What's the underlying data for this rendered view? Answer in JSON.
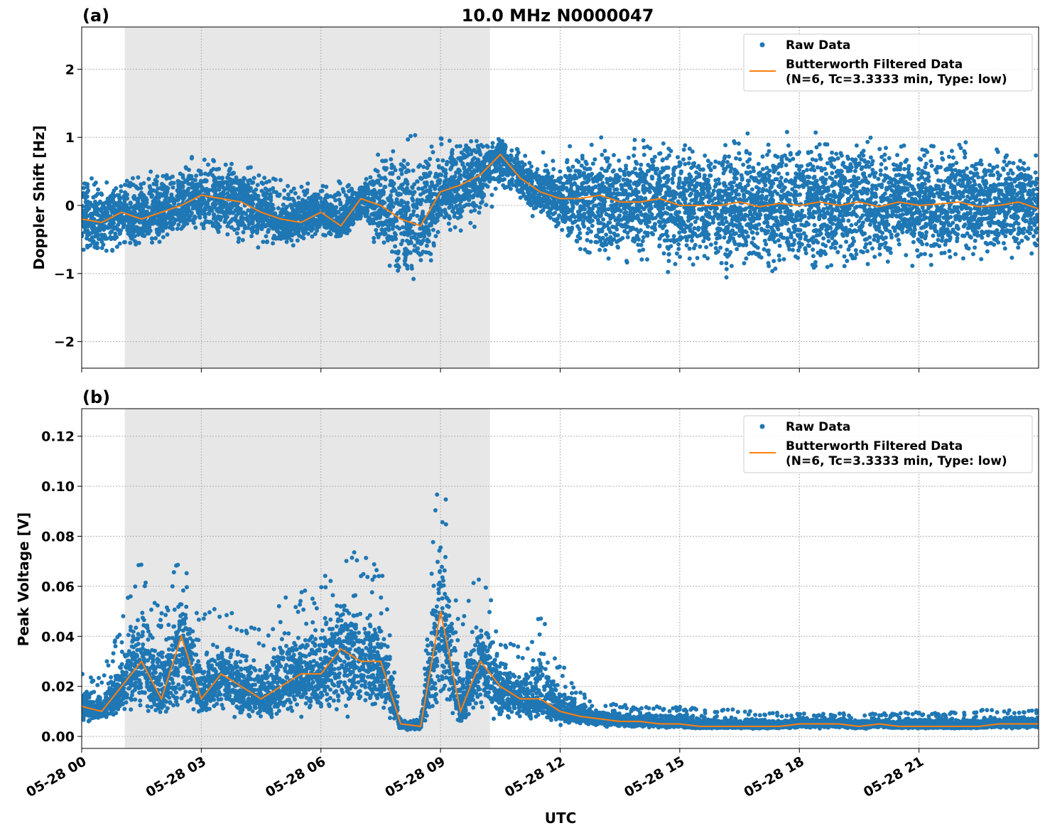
{
  "chart_data": [
    {
      "type": "scatter",
      "panel_label": "(a)",
      "title": "10.0 MHz N0000047",
      "xlabel": "",
      "ylabel": "Doppler Shift [Hz]",
      "xlim_hours": [
        0,
        24
      ],
      "ylim": [
        -2.39,
        2.62
      ],
      "yticks": [
        -2,
        -1,
        0,
        1,
        2
      ],
      "ytick_labels": [
        "−2",
        "−1",
        "0",
        "1",
        "2"
      ],
      "grid": true,
      "legend_position": "top-right",
      "shaded_interval_hours": [
        1.08,
        10.24
      ],
      "legend": [
        "Raw Data",
        "Butterworth Filtered Data",
        "(N=6, Tc=3.3333 min, Type: low)"
      ],
      "x_hours_step": 0.5,
      "filtered": [
        -0.2,
        -0.25,
        -0.1,
        -0.2,
        -0.1,
        0,
        0.15,
        0.1,
        0.05,
        -0.1,
        -0.2,
        -0.25,
        -0.1,
        -0.3,
        0.1,
        0,
        -0.2,
        -0.3,
        0.2,
        0.3,
        0.45,
        0.75,
        0.4,
        0.2,
        0.1,
        0.1,
        0.15,
        0.05,
        0.05,
        0.1,
        0,
        0,
        0,
        0.05,
        -0.02,
        0.03,
        0,
        0.05,
        0,
        0.05,
        -0.02,
        0.05,
        0,
        0.02,
        0.05,
        -0.02,
        0,
        0.05,
        -0.05
      ],
      "raw_low": [
        -0.8,
        -0.8,
        -0.7,
        -0.7,
        -0.7,
        -0.6,
        -0.5,
        -0.7,
        -0.7,
        -0.7,
        -0.7,
        -0.6,
        -0.5,
        -0.6,
        -0.3,
        -0.8,
        -1.4,
        -1.4,
        -0.5,
        -0.5,
        -0.3,
        0.1,
        0.0,
        -0.4,
        -0.5,
        -0.9,
        -1.0,
        -1.0,
        -1.1,
        -1.1,
        -1.1,
        -1.1,
        -1.1,
        -1.2,
        -1.2,
        -1.2,
        -1.2,
        -1.2,
        -1.1,
        -1.1,
        -1.1,
        -1.0,
        -1.0,
        -1.0,
        -1.0,
        -1.0,
        -0.9,
        -0.9,
        -0.9
      ],
      "raw_high": [
        0.6,
        0.5,
        0.5,
        0.6,
        0.6,
        0.7,
        0.9,
        0.8,
        0.8,
        0.6,
        0.5,
        0.4,
        0.4,
        0.5,
        0.4,
        1.0,
        1.3,
        1.2,
        1.1,
        1.2,
        1.1,
        1.0,
        0.9,
        0.8,
        0.8,
        1.0,
        1.1,
        1.0,
        1.1,
        1.1,
        1.1,
        1.1,
        1.1,
        1.2,
        1.2,
        1.2,
        1.2,
        1.3,
        1.2,
        1.2,
        1.2,
        1.1,
        1.1,
        1.1,
        1.1,
        1.0,
        1.0,
        1.0,
        0.9
      ]
    },
    {
      "type": "scatter",
      "panel_label": "(b)",
      "xlabel": "UTC",
      "ylabel": "Peak Voltage [V]",
      "xlim_hours": [
        0,
        24
      ],
      "ylim": [
        -0.0048,
        0.131
      ],
      "yticks": [
        0,
        0.02,
        0.04,
        0.06,
        0.08,
        0.1,
        0.12
      ],
      "ytick_labels": [
        "0.00",
        "0.02",
        "0.04",
        "0.06",
        "0.08",
        "0.10",
        "0.12"
      ],
      "xtick_labels": [
        "05-28 00",
        "05-28 03",
        "05-28 06",
        "05-28 09",
        "05-28 12",
        "05-28 15",
        "05-28 18",
        "05-28 21"
      ],
      "xtick_hours": [
        0,
        3,
        6,
        9,
        12,
        15,
        18,
        21
      ],
      "grid": true,
      "legend_position": "top-right",
      "shaded_interval_hours": [
        1.08,
        10.24
      ],
      "legend": [
        "Raw Data",
        "Butterworth Filtered Data",
        "(N=6, Tc=3.3333 min, Type: low)"
      ],
      "x_hours_step": 0.5,
      "filtered": [
        0.012,
        0.01,
        0.02,
        0.03,
        0.015,
        0.04,
        0.015,
        0.025,
        0.02,
        0.015,
        0.02,
        0.025,
        0.025,
        0.035,
        0.03,
        0.03,
        0.005,
        0.004,
        0.05,
        0.01,
        0.03,
        0.02,
        0.015,
        0.015,
        0.01,
        0.008,
        0.007,
        0.006,
        0.006,
        0.005,
        0.005,
        0.004,
        0.004,
        0.004,
        0.004,
        0.004,
        0.005,
        0.005,
        0.005,
        0.004,
        0.005,
        0.004,
        0.004,
        0.004,
        0.004,
        0.004,
        0.005,
        0.005,
        0.005
      ],
      "raw_low": [
        0.005,
        0.005,
        0.006,
        0.006,
        0.005,
        0.005,
        0.006,
        0.006,
        0.006,
        0.005,
        0.005,
        0.006,
        0.006,
        0.006,
        0.006,
        0.005,
        0.002,
        0.002,
        0.005,
        0.002,
        0.005,
        0.005,
        0.005,
        0.005,
        0.004,
        0.004,
        0.004,
        0.003,
        0.003,
        0.003,
        0.003,
        0.003,
        0.003,
        0.003,
        0.003,
        0.003,
        0.003,
        0.003,
        0.003,
        0.003,
        0.003,
        0.003,
        0.003,
        0.003,
        0.003,
        0.003,
        0.003,
        0.003,
        0.003
      ],
      "raw_high": [
        0.022,
        0.02,
        0.04,
        0.06,
        0.04,
        0.065,
        0.04,
        0.045,
        0.04,
        0.035,
        0.045,
        0.05,
        0.05,
        0.07,
        0.06,
        0.06,
        0.006,
        0.006,
        0.1,
        0.035,
        0.06,
        0.035,
        0.03,
        0.04,
        0.025,
        0.015,
        0.012,
        0.011,
        0.01,
        0.01,
        0.01,
        0.009,
        0.009,
        0.009,
        0.008,
        0.008,
        0.008,
        0.008,
        0.008,
        0.008,
        0.008,
        0.008,
        0.008,
        0.008,
        0.008,
        0.009,
        0.009,
        0.009,
        0.009
      ]
    }
  ],
  "colors": {
    "raw": "#1f77b4",
    "filtered": "#ff7f0e",
    "shade": "#e7e7e7",
    "grid": "#b0b0b0"
  }
}
